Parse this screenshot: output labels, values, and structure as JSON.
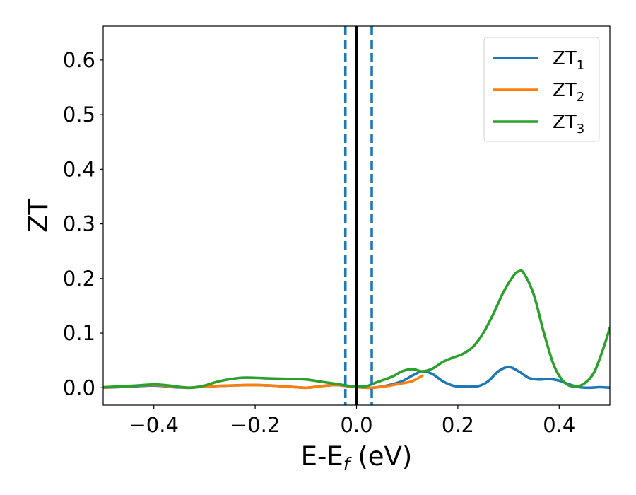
{
  "chart_data": {
    "type": "line",
    "title": "",
    "xlabel": "E-E",
    "xlabel_sub": "f",
    "xlabel_unit": " (eV)",
    "ylabel": "ZT",
    "xlim": [
      -0.5,
      0.5
    ],
    "ylim": [
      -0.032,
      0.662
    ],
    "xticks": [
      -0.4,
      -0.2,
      0.0,
      0.2,
      0.4
    ],
    "xtick_labels": [
      "−0.4",
      "−0.2",
      "0.0",
      "0.2",
      "0.4"
    ],
    "yticks": [
      0.0,
      0.1,
      0.2,
      0.3,
      0.4,
      0.5,
      0.6
    ],
    "ytick_labels": [
      "0.0",
      "0.1",
      "0.2",
      "0.3",
      "0.4",
      "0.5",
      "0.6"
    ],
    "grid": false,
    "legend_position": "top-right",
    "vlines": [
      {
        "x": 0.0,
        "style": "solid",
        "color": "#000000"
      },
      {
        "x": -0.022,
        "style": "dashed",
        "color": "#1f77b4"
      },
      {
        "x": 0.03,
        "style": "dashed",
        "color": "#1f77b4"
      }
    ],
    "series": [
      {
        "name": "ZT",
        "name_sub": "1",
        "color": "#1f77b4",
        "points": [
          [
            -0.5,
            0.0
          ],
          [
            -0.45,
            0.002
          ],
          [
            -0.4,
            0.004
          ],
          [
            -0.36,
            0.001
          ],
          [
            -0.33,
            0.0
          ],
          [
            -0.3,
            0.002
          ],
          [
            -0.25,
            0.004
          ],
          [
            -0.2,
            0.005
          ],
          [
            -0.15,
            0.003
          ],
          [
            -0.1,
            0.0
          ],
          [
            -0.07,
            0.003
          ],
          [
            -0.04,
            0.005
          ],
          [
            -0.02,
            0.003
          ],
          [
            0.0,
            0.001
          ],
          [
            0.03,
            0.0
          ],
          [
            0.06,
            0.004
          ],
          [
            0.09,
            0.012
          ],
          [
            0.11,
            0.022
          ],
          [
            0.13,
            0.03
          ],
          [
            0.15,
            0.025
          ],
          [
            0.17,
            0.012
          ],
          [
            0.19,
            0.004
          ],
          [
            0.21,
            0.002
          ],
          [
            0.24,
            0.003
          ],
          [
            0.26,
            0.012
          ],
          [
            0.28,
            0.03
          ],
          [
            0.3,
            0.038
          ],
          [
            0.32,
            0.03
          ],
          [
            0.34,
            0.018
          ],
          [
            0.36,
            0.015
          ],
          [
            0.38,
            0.016
          ],
          [
            0.4,
            0.013
          ],
          [
            0.42,
            0.006
          ],
          [
            0.44,
            0.001
          ],
          [
            0.46,
            0.0
          ],
          [
            0.48,
            0.001
          ],
          [
            0.5,
            0.0
          ]
        ]
      },
      {
        "name": "ZT",
        "name_sub": "2",
        "color": "#ff7f0e",
        "points": [
          [
            -0.5,
            0.0
          ],
          [
            -0.45,
            0.003
          ],
          [
            -0.4,
            0.005
          ],
          [
            -0.36,
            0.002
          ],
          [
            -0.33,
            0.0
          ],
          [
            -0.3,
            0.002
          ],
          [
            -0.25,
            0.004
          ],
          [
            -0.2,
            0.005
          ],
          [
            -0.15,
            0.003
          ],
          [
            -0.1,
            0.0
          ],
          [
            -0.07,
            0.003
          ],
          [
            -0.04,
            0.005
          ],
          [
            -0.02,
            0.003
          ],
          [
            0.0,
            0.001
          ],
          [
            0.03,
            0.0
          ],
          [
            0.06,
            0.003
          ],
          [
            0.09,
            0.008
          ],
          [
            0.11,
            0.012
          ],
          [
            0.13,
            0.022
          ]
        ]
      },
      {
        "name": "ZT",
        "name_sub": "3",
        "color": "#2ca02c",
        "points": [
          [
            -0.5,
            0.001
          ],
          [
            -0.45,
            0.003
          ],
          [
            -0.4,
            0.006
          ],
          [
            -0.37,
            0.004
          ],
          [
            -0.33,
            0.0
          ],
          [
            -0.3,
            0.004
          ],
          [
            -0.27,
            0.012
          ],
          [
            -0.23,
            0.018
          ],
          [
            -0.2,
            0.018
          ],
          [
            -0.17,
            0.017
          ],
          [
            -0.13,
            0.016
          ],
          [
            -0.1,
            0.015
          ],
          [
            -0.07,
            0.011
          ],
          [
            -0.04,
            0.007
          ],
          [
            -0.02,
            0.004
          ],
          [
            0.0,
            0.002
          ],
          [
            0.02,
            0.003
          ],
          [
            0.04,
            0.01
          ],
          [
            0.07,
            0.02
          ],
          [
            0.09,
            0.03
          ],
          [
            0.11,
            0.034
          ],
          [
            0.13,
            0.03
          ],
          [
            0.15,
            0.035
          ],
          [
            0.17,
            0.047
          ],
          [
            0.19,
            0.055
          ],
          [
            0.21,
            0.062
          ],
          [
            0.23,
            0.075
          ],
          [
            0.25,
            0.1
          ],
          [
            0.27,
            0.135
          ],
          [
            0.29,
            0.175
          ],
          [
            0.31,
            0.205
          ],
          [
            0.32,
            0.213
          ],
          [
            0.33,
            0.21
          ],
          [
            0.35,
            0.17
          ],
          [
            0.37,
            0.1
          ],
          [
            0.39,
            0.04
          ],
          [
            0.41,
            0.01
          ],
          [
            0.43,
            0.002
          ],
          [
            0.45,
            0.008
          ],
          [
            0.47,
            0.03
          ],
          [
            0.49,
            0.08
          ],
          [
            0.5,
            0.11
          ]
        ]
      }
    ]
  }
}
